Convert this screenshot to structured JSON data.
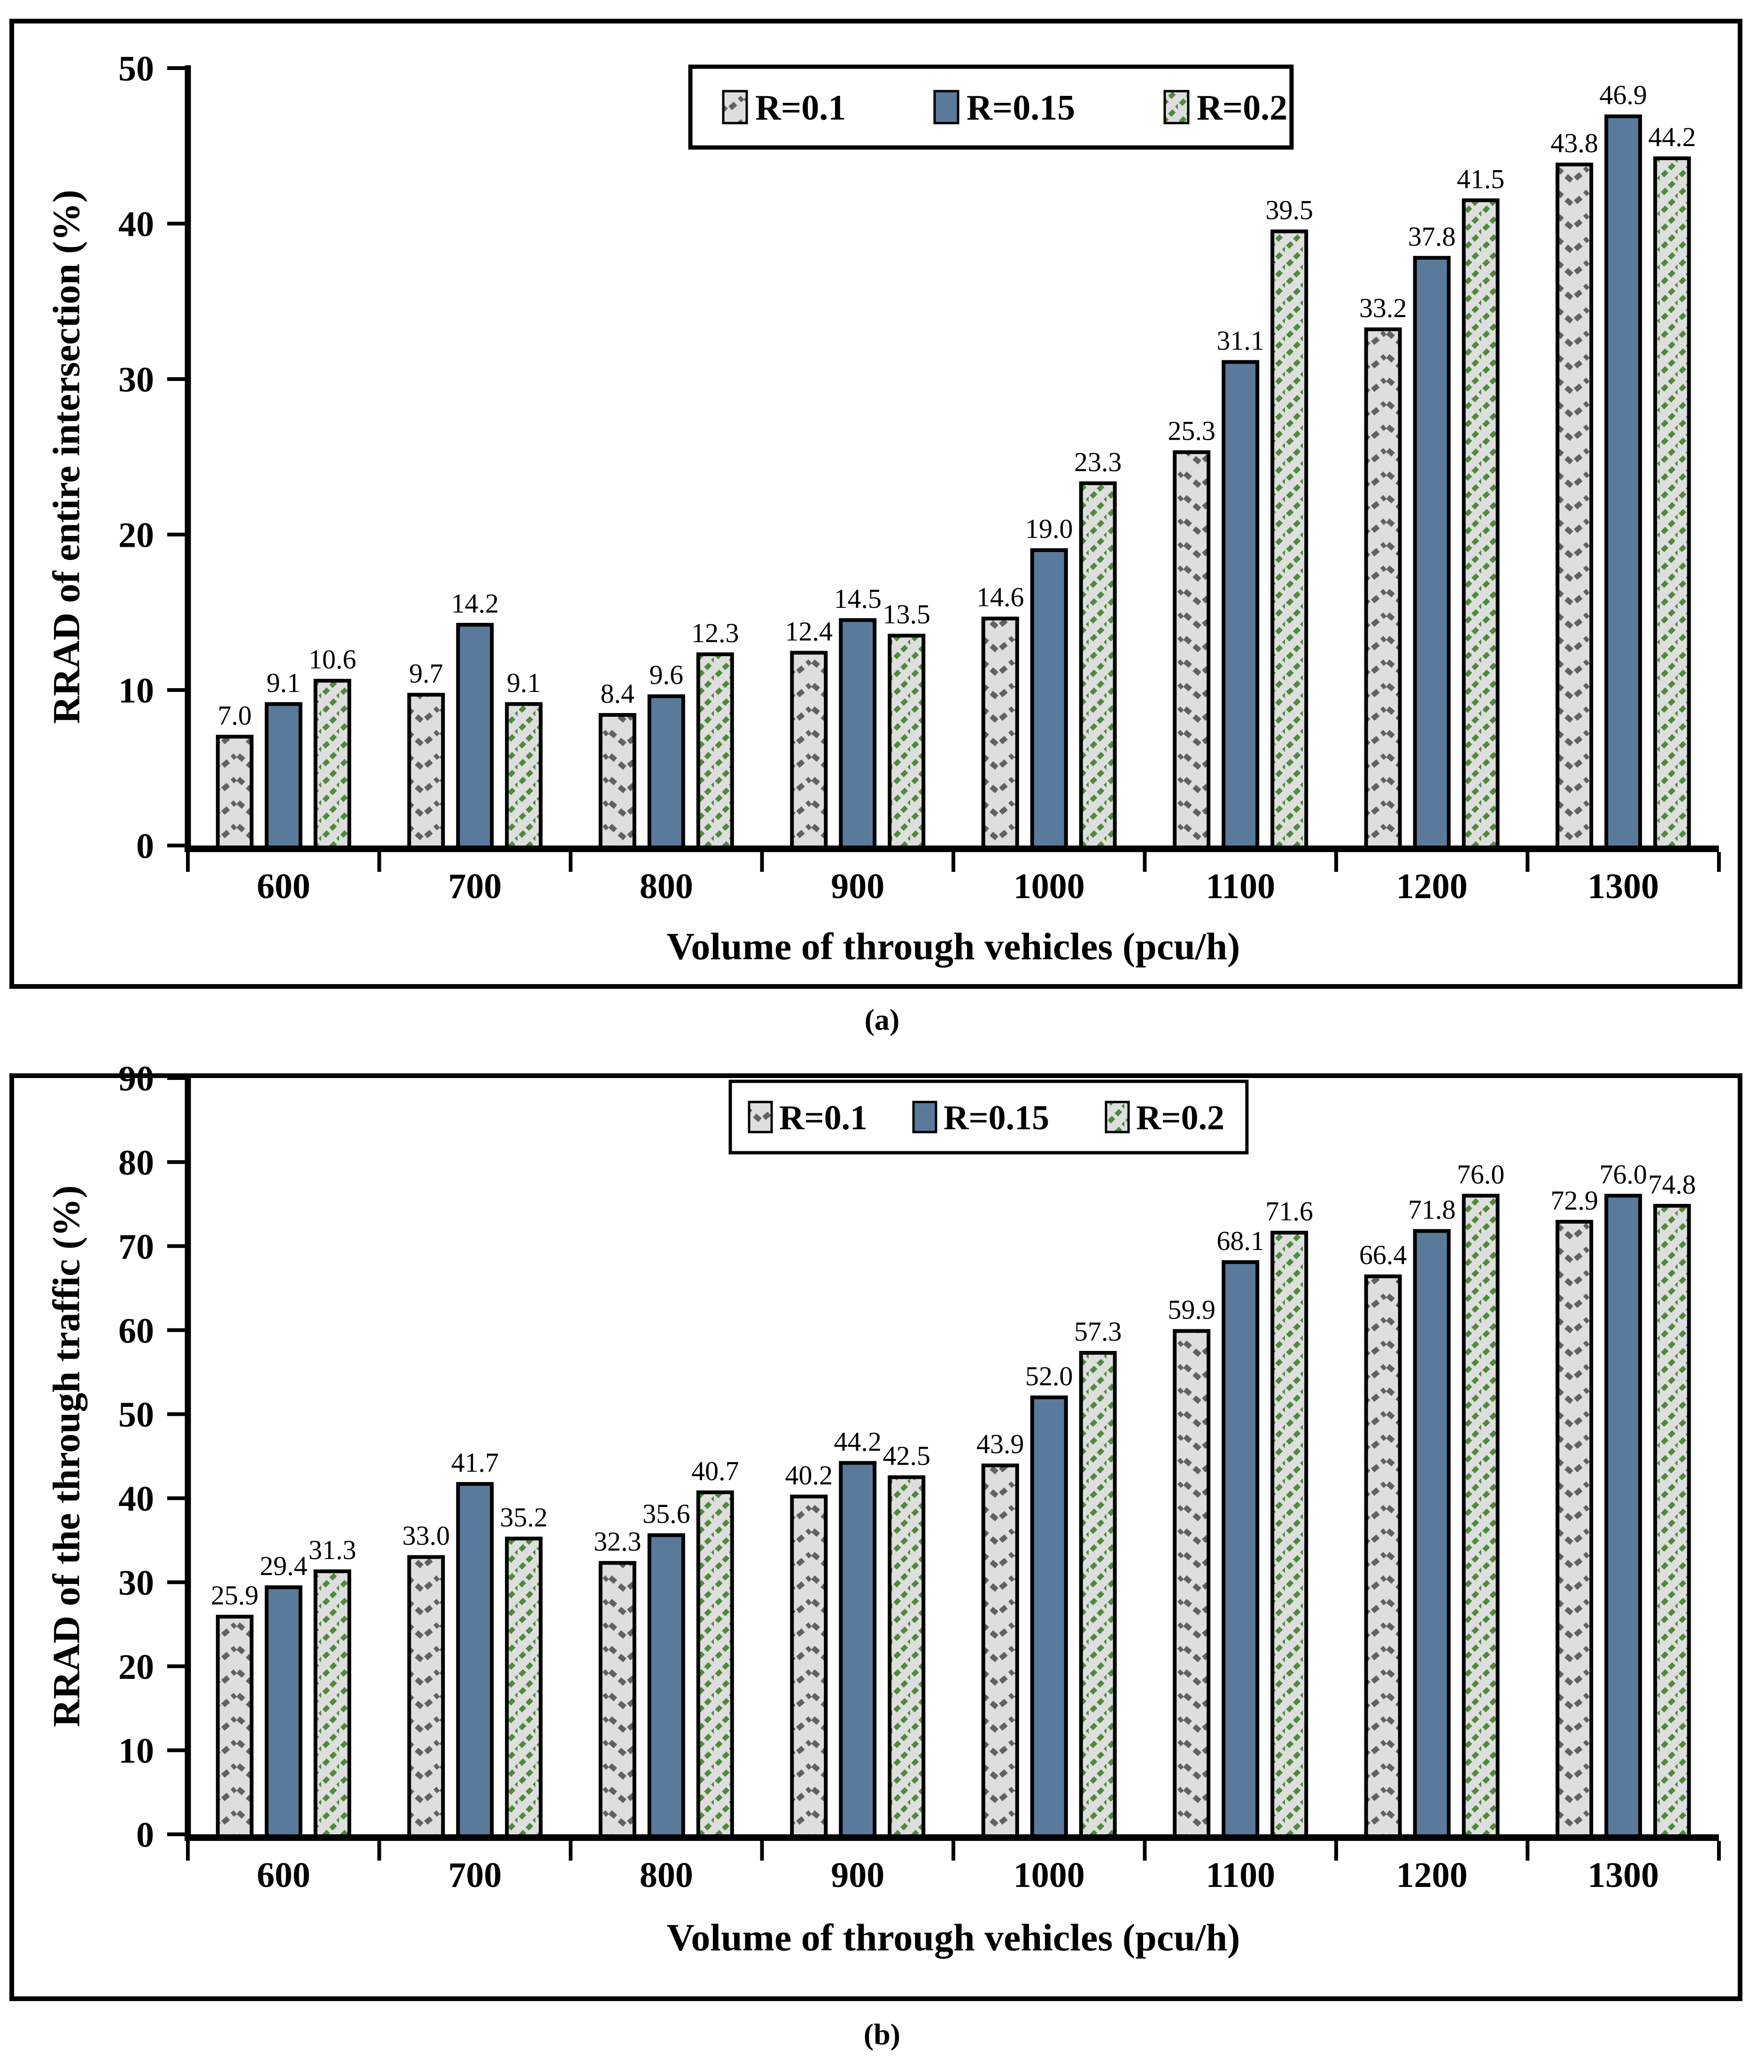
{
  "figure": {
    "background": "#ffffff"
  },
  "colors": {
    "frame": "#000000",
    "text": "#000000",
    "plot_background": "#ffffff",
    "series_blue": "#5a7a9c",
    "pattern_background": "#dedede",
    "chevron_stroke": "#616161",
    "diagonal_stroke": "#4f8a3a",
    "bar_border": "#000000"
  },
  "chart_data": [
    {
      "id": "a",
      "type": "bar",
      "caption": "(a)",
      "title": "",
      "xlabel": "Volume of through vehicles (pcu/h)",
      "ylabel": "RRAD of entire intersection (%)",
      "ylim": [
        0,
        50
      ],
      "ytick_step": 10,
      "yticks": [
        "0",
        "10",
        "20",
        "30",
        "40",
        "50"
      ],
      "grid": "off",
      "legend_position": "top-center",
      "categories": [
        "600",
        "700",
        "800",
        "900",
        "1000",
        "1100",
        "1200",
        "1300"
      ],
      "series": [
        {
          "name": "R=0.1",
          "style": "chevron",
          "values": [
            7.0,
            9.7,
            8.4,
            12.4,
            14.6,
            25.3,
            33.2,
            43.8
          ],
          "labels": [
            "7.0",
            "9.7",
            "8.4",
            "12.4",
            "14.6",
            "25.3",
            "33.2",
            "43.8"
          ]
        },
        {
          "name": "R=0.15",
          "style": "solid",
          "values": [
            9.1,
            14.2,
            9.6,
            14.5,
            19.0,
            31.1,
            37.8,
            46.9
          ],
          "labels": [
            "9.1",
            "14.2",
            "9.6",
            "14.5",
            "19.0",
            "31.1",
            "37.8",
            "46.9"
          ]
        },
        {
          "name": "R=0.2",
          "style": "diagonal",
          "values": [
            10.6,
            9.1,
            12.3,
            13.5,
            23.3,
            39.5,
            41.5,
            44.2
          ],
          "labels": [
            "10.6",
            "9.1",
            "12.3",
            "13.5",
            "23.3",
            "39.5",
            "41.5",
            "44.2"
          ]
        }
      ]
    },
    {
      "id": "b",
      "type": "bar",
      "caption": "(b)",
      "title": "",
      "xlabel": "Volume of through vehicles (pcu/h)",
      "ylabel": "RRAD of the through traffic (%)",
      "ylim": [
        0,
        90
      ],
      "ytick_step": 10,
      "yticks": [
        "0",
        "10",
        "20",
        "30",
        "40",
        "50",
        "60",
        "70",
        "80",
        "90"
      ],
      "grid": "off",
      "legend_position": "top-center",
      "categories": [
        "600",
        "700",
        "800",
        "900",
        "1000",
        "1100",
        "1200",
        "1300"
      ],
      "series": [
        {
          "name": "R=0.1",
          "style": "chevron",
          "values": [
            25.9,
            33.0,
            32.3,
            40.2,
            43.9,
            59.9,
            66.4,
            72.9
          ],
          "labels": [
            "25.9",
            "33.0",
            "32.3",
            "40.2",
            "43.9",
            "59.9",
            "66.4",
            "72.9"
          ]
        },
        {
          "name": "R=0.15",
          "style": "solid",
          "values": [
            29.4,
            41.7,
            35.6,
            44.2,
            52.0,
            68.1,
            71.8,
            76.0
          ],
          "labels": [
            "29.4",
            "41.7",
            "35.6",
            "44.2",
            "52.0",
            "68.1",
            "71.8",
            "76.0"
          ]
        },
        {
          "name": "R=0.2",
          "style": "diagonal",
          "values": [
            31.3,
            35.2,
            40.7,
            42.5,
            57.3,
            71.6,
            76.0,
            74.8
          ],
          "labels": [
            "31.3",
            "35.2",
            "40.7",
            "42.5",
            "57.3",
            "71.6",
            "76.0",
            "74.8"
          ]
        }
      ]
    }
  ]
}
